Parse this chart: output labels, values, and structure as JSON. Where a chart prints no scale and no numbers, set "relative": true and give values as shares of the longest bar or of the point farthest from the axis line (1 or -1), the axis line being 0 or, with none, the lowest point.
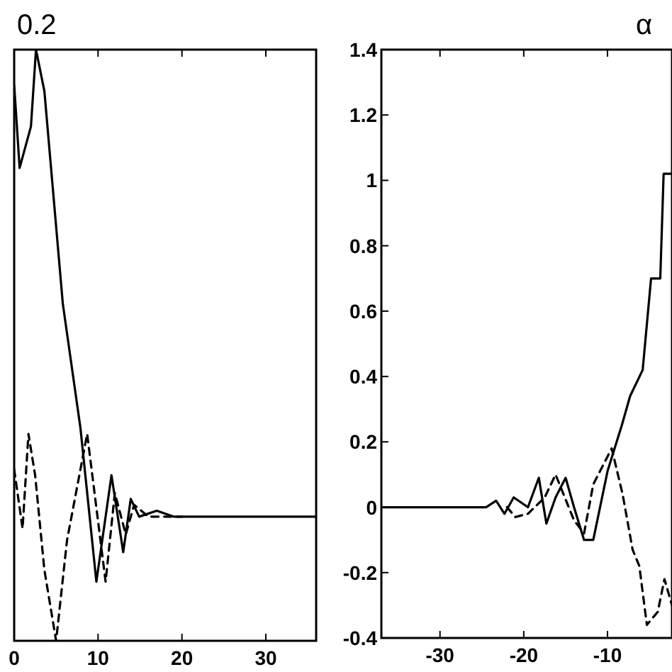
{
  "chart_data": [
    {
      "type": "line",
      "title": "0.2",
      "relative": true,
      "xlim": [
        0,
        36
      ],
      "xticks": [
        0,
        10,
        20,
        30
      ],
      "series": [
        {
          "color": "#000000",
          "line_style": "solid",
          "x": [
            0,
            0.65,
            2,
            2.6,
            3.6,
            5.8,
            7.9,
            9.8,
            11.6,
            13,
            13.9,
            14.9,
            17,
            19,
            36
          ],
          "values": [
            0.94,
            0.8,
            0.87,
            1,
            0.93,
            0.57,
            0.36,
            0.1,
            0.28,
            0.15,
            0.24,
            0.21,
            0.22,
            0.21,
            0.21
          ]
        },
        {
          "color": "#000000",
          "line_style": "dashed",
          "x": [
            0,
            1,
            1.7,
            2.5,
            3.6,
            5,
            6.3,
            8.7,
            10.9,
            12,
            13.3,
            14.3,
            16,
            20
          ],
          "values": [
            0.29,
            0.19,
            0.35,
            0.28,
            0.12,
            0,
            0.17,
            0.35,
            0.1,
            0.25,
            0.18,
            0.23,
            0.21,
            0.21
          ]
        }
      ]
    },
    {
      "type": "line",
      "title": "α",
      "xlim": [
        -37,
        -2.3
      ],
      "xticks": [
        -30,
        -20,
        -10
      ],
      "ylim": [
        -0.4,
        1.4
      ],
      "yticks": [
        -0.4,
        -0.2,
        0,
        0.2,
        0.4,
        0.6,
        0.8,
        1,
        1.2,
        1.4
      ],
      "series": [
        {
          "color": "#000000",
          "line_style": "solid",
          "x": [
            -37,
            -24.5,
            -23.3,
            -22.3,
            -21.2,
            -19.5,
            -18.2,
            -17.3,
            -16.2,
            -15,
            -14,
            -12.8,
            -11.7,
            -10,
            -8.3,
            -7.3,
            -5.8,
            -4.8,
            -3.7,
            -3.3,
            -2.3
          ],
          "values": [
            0,
            0,
            0.02,
            -0.02,
            0.03,
            0,
            0.09,
            -0.05,
            0.03,
            0.09,
            0,
            -0.1,
            -0.1,
            0.11,
            0.25,
            0.34,
            0.42,
            0.7,
            0.7,
            1.02,
            1.02
          ]
        },
        {
          "color": "#000000",
          "line_style": "dashed",
          "x": [
            -22,
            -21,
            -19.5,
            -17.5,
            -16.2,
            -14,
            -12.8,
            -11.7,
            -9.5,
            -8.2,
            -7,
            -6.2,
            -5.3,
            -4,
            -3.2,
            -2.3
          ],
          "values": [
            0,
            -0.03,
            -0.02,
            0.03,
            0.1,
            -0.04,
            -0.08,
            0.07,
            0.18,
            0.04,
            -0.13,
            -0.18,
            -0.36,
            -0.32,
            -0.22,
            -0.3
          ]
        }
      ]
    }
  ]
}
